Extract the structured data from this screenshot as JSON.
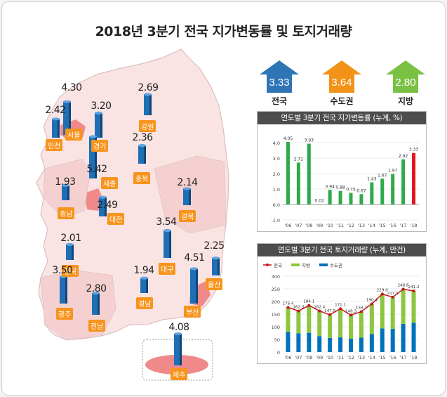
{
  "title": "2018년 3분기 전국 지가변동률 및 토지거래량",
  "summary": [
    {
      "label": "전국",
      "value": "3.33",
      "color": "#2e75b6"
    },
    {
      "label": "수도권",
      "value": "3.64",
      "color": "#f29318"
    },
    {
      "label": "지방",
      "value": "2.80",
      "color": "#7ac143"
    }
  ],
  "regions": [
    {
      "name": "서울",
      "value": "4.30",
      "num": 4.3
    },
    {
      "name": "인천",
      "value": "2.42",
      "num": 2.42
    },
    {
      "name": "경기",
      "value": "3.20",
      "num": 3.2
    },
    {
      "name": "강원",
      "value": "2.69",
      "num": 2.69
    },
    {
      "name": "충북",
      "value": "2.36",
      "num": 2.36
    },
    {
      "name": "세종",
      "value": "5.42",
      "num": 5.42
    },
    {
      "name": "대전",
      "value": "2.49",
      "num": 2.49
    },
    {
      "name": "충남",
      "value": "1.93",
      "num": 1.93
    },
    {
      "name": "경북",
      "value": "2.14",
      "num": 2.14
    },
    {
      "name": "대구",
      "value": "3.54",
      "num": 3.54
    },
    {
      "name": "전북",
      "value": "2.01",
      "num": 2.01
    },
    {
      "name": "울산",
      "value": "2.25",
      "num": 2.25
    },
    {
      "name": "부산",
      "value": "4.51",
      "num": 4.51
    },
    {
      "name": "경남",
      "value": "1.94",
      "num": 1.94
    },
    {
      "name": "광주",
      "value": "3.50",
      "num": 3.5
    },
    {
      "name": "전남",
      "value": "2.80",
      "num": 2.8
    },
    {
      "name": "제주",
      "value": "4.08",
      "num": 4.08
    }
  ],
  "chart_data": [
    {
      "type": "bar",
      "title": "연도별 3분기 전국 지가변동률 (누계, %)",
      "categories": [
        "'06",
        "'07",
        "'08",
        "'09",
        "'10",
        "'11",
        "'12",
        "'13",
        "'14",
        "'15",
        "'16",
        "'17",
        "'18"
      ],
      "values": [
        4.05,
        2.71,
        3.93,
        0.02,
        0.94,
        0.88,
        0.75,
        0.67,
        1.43,
        1.67,
        1.97,
        2.92,
        3.33
      ],
      "value_labels": [
        "4.05",
        "2.71",
        "3.93",
        "0.02",
        "0.94",
        "0.88",
        "0.75",
        "0.67",
        "1.43",
        "1.67",
        "1.97",
        "2.92",
        "3.33"
      ],
      "ylim": [
        -1.0,
        4.0
      ],
      "yticks": [
        "4.0",
        "3.0",
        "2.0",
        "1.0",
        "0.0",
        "-1.0"
      ],
      "colors": {
        "normal": "#2eaa4a",
        "highlight": "#e0161c"
      }
    },
    {
      "type": "bar",
      "title": "연도별 3분기 전국 토지거래량 (누계, 만건)",
      "categories": [
        "'06",
        "'07",
        "'08",
        "'09",
        "'10",
        "'11",
        "'12",
        "'13",
        "'14",
        "'15",
        "'16",
        "'17",
        "'18"
      ],
      "legend": [
        "전국",
        "지방",
        "수도권"
      ],
      "series": [
        {
          "name": "수도권",
          "values": [
            80,
            74,
            76,
            63,
            56,
            58,
            53,
            57,
            71,
            93,
            92,
            111,
            116
          ]
        },
        {
          "name": "지방",
          "values": [
            96.4,
            88.3,
            108.1,
            99.4,
            91.5,
            113.1,
            93.3,
            102.7,
            119.4,
            136.0,
            125.1,
            137.6,
            125.2
          ]
        },
        {
          "name": "전국",
          "values": [
            176.4,
            162.3,
            184.1,
            162.4,
            147.5,
            171.1,
            146.3,
            159.7,
            190.4,
            229.0,
            217.1,
            248.6,
            241.2
          ]
        }
      ],
      "value_labels": [
        "176.4",
        "162.3",
        "184.1",
        "162.4",
        "147.5",
        "171.1",
        "146.3",
        "159.7",
        "190.4",
        "229.0",
        "217.1",
        "248.6",
        "241.2"
      ],
      "ylim": [
        0,
        300
      ],
      "yticks": [
        "300",
        "250",
        "200",
        "150",
        "100",
        "50",
        "0"
      ],
      "colors": {
        "total": "#c4161c",
        "regional": "#8cc63f",
        "capital": "#0072bc"
      }
    }
  ]
}
